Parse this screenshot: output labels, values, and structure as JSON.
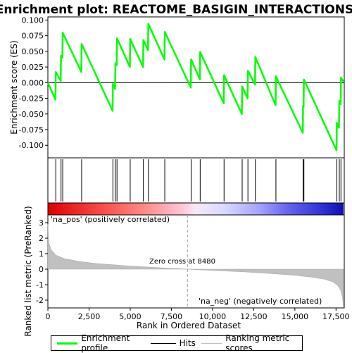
{
  "chart_data": {
    "type": "line",
    "title": "Enrichment plot: REACTOME_BASIGIN_INTERACTIONS",
    "xlabel": "Rank in Ordered Dataset",
    "ylabel_top": "Enrichment score (ES)",
    "ylabel_bottom": "Ranked list metric (PreRanked)",
    "xlim": [
      0,
      18000
    ],
    "ylim_top": [
      -0.12,
      0.105
    ],
    "ylim_bottom": [
      -2.5,
      3.5
    ],
    "x_ticks": [
      0,
      2500,
      5000,
      7500,
      10000,
      12500,
      15000,
      17500
    ],
    "x_tick_labels": [
      "0",
      "2,500",
      "5,000",
      "7,500",
      "10,000",
      "12,500",
      "15,000",
      "17,500"
    ],
    "y_ticks_top": [
      0.1,
      0.075,
      0.05,
      0.025,
      0.0,
      -0.025,
      -0.05,
      -0.075,
      -0.1
    ],
    "y_tick_labels_top": [
      "0.100",
      "0.075",
      "0.050",
      "0.025",
      "0.000",
      "-0.025",
      "-0.050",
      "-0.075",
      "-0.100"
    ],
    "y_ticks_bottom": [
      3,
      2,
      1,
      0,
      -1,
      -2
    ],
    "y_tick_labels_bottom": [
      "3",
      "2",
      "1",
      "0",
      "-1",
      "-2"
    ],
    "hits": [
      480,
      800,
      900,
      2050,
      3950,
      4100,
      4200,
      5000,
      5800,
      6100,
      7100,
      8700,
      9250,
      10700,
      11800,
      12150,
      12600,
      13850,
      15500,
      15550,
      17550,
      17700,
      17800
    ],
    "enrichment_profile": [
      [
        0,
        0.0
      ],
      [
        460,
        -0.027
      ],
      [
        480,
        0.017
      ],
      [
        780,
        0.003
      ],
      [
        800,
        0.043
      ],
      [
        880,
        0.04
      ],
      [
        900,
        0.08
      ],
      [
        2030,
        0.017
      ],
      [
        2050,
        0.062
      ],
      [
        3930,
        -0.045
      ],
      [
        3950,
        -0.002
      ],
      [
        4080,
        -0.01
      ],
      [
        4100,
        0.031
      ],
      [
        4180,
        0.028
      ],
      [
        4200,
        0.071
      ],
      [
        4980,
        0.025
      ],
      [
        5000,
        0.07
      ],
      [
        5780,
        0.025
      ],
      [
        5800,
        0.068
      ],
      [
        6080,
        0.052
      ],
      [
        6100,
        0.094
      ],
      [
        7080,
        0.037
      ],
      [
        7100,
        0.081
      ],
      [
        8680,
        -0.008
      ],
      [
        8700,
        0.037
      ],
      [
        9230,
        0.005
      ],
      [
        9250,
        0.049
      ],
      [
        10680,
        -0.033
      ],
      [
        10700,
        0.012
      ],
      [
        11780,
        -0.05
      ],
      [
        11800,
        -0.006
      ],
      [
        12130,
        -0.025
      ],
      [
        12150,
        0.019
      ],
      [
        12580,
        -0.003
      ],
      [
        12600,
        0.041
      ],
      [
        13830,
        -0.036
      ],
      [
        13850,
        0.01
      ],
      [
        15480,
        -0.08
      ],
      [
        15500,
        -0.037
      ],
      [
        15530,
        -0.039
      ],
      [
        15550,
        0.005
      ],
      [
        17530,
        -0.108
      ],
      [
        17550,
        -0.064
      ],
      [
        17680,
        -0.072
      ],
      [
        17700,
        -0.029
      ],
      [
        17780,
        -0.034
      ],
      [
        17800,
        0.008
      ],
      [
        17950,
        0.002
      ]
    ],
    "metric_curve": [
      [
        0,
        2.9
      ],
      [
        60,
        1.7
      ],
      [
        200,
        1.25
      ],
      [
        500,
        0.9
      ],
      [
        1000,
        0.68
      ],
      [
        2000,
        0.48
      ],
      [
        3000,
        0.36
      ],
      [
        4000,
        0.28
      ],
      [
        5000,
        0.2
      ],
      [
        6000,
        0.14
      ],
      [
        7000,
        0.08
      ],
      [
        8000,
        0.03
      ],
      [
        8480,
        0.0
      ],
      [
        9000,
        -0.03
      ],
      [
        10000,
        -0.08
      ],
      [
        11000,
        -0.13
      ],
      [
        12000,
        -0.18
      ],
      [
        13000,
        -0.25
      ],
      [
        14000,
        -0.32
      ],
      [
        15000,
        -0.4
      ],
      [
        16000,
        -0.52
      ],
      [
        16800,
        -0.65
      ],
      [
        17300,
        -0.82
      ],
      [
        17600,
        -1.05
      ],
      [
        17800,
        -1.4
      ],
      [
        17900,
        -1.9
      ],
      [
        17950,
        -2.45
      ]
    ],
    "zero_cross": 8480,
    "zero_cross_label": "Zero cross at 8480",
    "pos_label": "'na_pos' (positively correlated)",
    "neg_label": "'na_neg' (negatively correlated)",
    "legend": [
      {
        "label": "Enrichment profile",
        "color": "#00ff00"
      },
      {
        "label": "Hits",
        "color": "#000000"
      },
      {
        "label": "Ranking metric scores",
        "color": "#c0c0c0"
      }
    ],
    "colors": {
      "profile": "#00ff00",
      "metric_fill": "#c0c0c0",
      "pos_text": "#cc0000",
      "neg_text": "#0000cc",
      "zero_line": "#a0a0a0"
    }
  }
}
